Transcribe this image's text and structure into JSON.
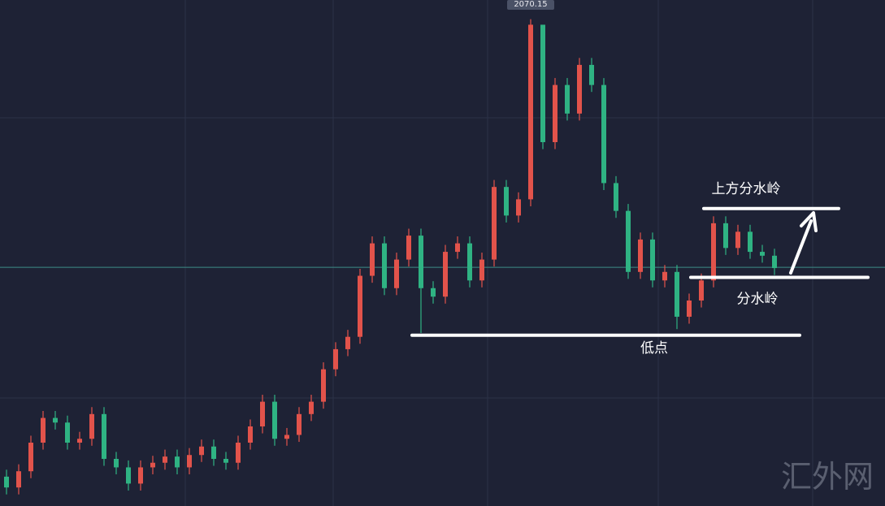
{
  "chart_data": {
    "type": "candlestick",
    "ylim": [
      1440,
      2095
    ],
    "up_color": "#e2534b",
    "down_color": "#2fb383",
    "open": [
      1478,
      1464,
      1485,
      1522,
      1554,
      1548,
      1522,
      1527,
      1559,
      1501,
      1490,
      1469,
      1490,
      1496,
      1504,
      1490,
      1506,
      1517,
      1501,
      1496,
      1522,
      1543,
      1575,
      1527,
      1532,
      1559,
      1575,
      1617,
      1643,
      1659,
      1738,
      1780,
      1722,
      1759,
      1790,
      1722,
      1711,
      1769,
      1780,
      1732,
      1759,
      1853,
      1816,
      1837,
      2063,
      1911,
      1985,
      1948,
      2011,
      1985,
      1858,
      1822,
      1743,
      1785,
      1732,
      1743,
      1685,
      1706,
      1732,
      1806,
      1774,
      1795,
      1769,
      1764
    ],
    "high": [
      1487,
      1494,
      1531,
      1563,
      1563,
      1557,
      1536,
      1568,
      1568,
      1510,
      1499,
      1499,
      1505,
      1513,
      1513,
      1515,
      1526,
      1526,
      1510,
      1531,
      1552,
      1584,
      1584,
      1541,
      1568,
      1584,
      1626,
      1652,
      1668,
      1747,
      1789,
      1789,
      1768,
      1799,
      1799,
      1731,
      1778,
      1789,
      1789,
      1768,
      1862,
      1862,
      1846,
      2070.15,
      2060,
      1994,
      1994,
      2020,
      2020,
      1994,
      1867,
      1831,
      1794,
      1794,
      1752,
      1752,
      1715,
      1741,
      1815,
      1815,
      1804,
      1804,
      1778,
      1773
    ],
    "low": [
      1455,
      1455,
      1476,
      1513,
      1539,
      1513,
      1513,
      1518,
      1492,
      1481,
      1460,
      1460,
      1481,
      1487,
      1481,
      1481,
      1497,
      1492,
      1487,
      1487,
      1513,
      1534,
      1518,
      1518,
      1523,
      1550,
      1566,
      1608,
      1634,
      1650,
      1729,
      1713,
      1713,
      1750,
      1664,
      1702,
      1702,
      1760,
      1723,
      1723,
      1750,
      1807,
      1807,
      1828,
      1902,
      1902,
      1939,
      1939,
      1976,
      1849,
      1813,
      1734,
      1734,
      1723,
      1723,
      1669,
      1676,
      1697,
      1723,
      1765,
      1765,
      1760,
      1755,
      1739
    ],
    "close": [
      1464,
      1485,
      1522,
      1554,
      1548,
      1522,
      1527,
      1559,
      1501,
      1490,
      1469,
      1490,
      1496,
      1504,
      1490,
      1506,
      1517,
      1501,
      1496,
      1522,
      1543,
      1575,
      1527,
      1532,
      1559,
      1575,
      1617,
      1643,
      1659,
      1738,
      1780,
      1722,
      1759,
      1790,
      1722,
      1711,
      1769,
      1780,
      1732,
      1759,
      1853,
      1816,
      1837,
      2063,
      1911,
      1985,
      1948,
      2011,
      1985,
      1858,
      1822,
      1743,
      1785,
      1732,
      1743,
      1685,
      1706,
      1732,
      1806,
      1774,
      1795,
      1769,
      1764,
      1748
    ],
    "price_line": 1749,
    "annotations": [
      {
        "label": "上方分水岭",
        "value": 1825
      },
      {
        "label": "分水岭",
        "value": 1736
      },
      {
        "label": "低点",
        "value": 1661
      }
    ],
    "watermark": "汇外网"
  }
}
